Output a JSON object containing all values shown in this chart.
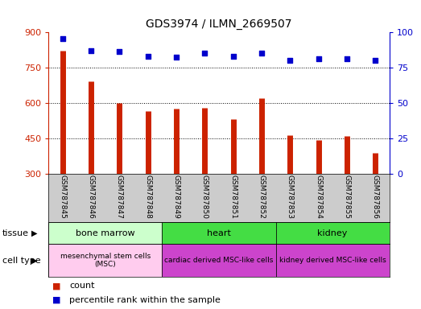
{
  "title": "GDS3974 / ILMN_2669507",
  "samples": [
    "GSM787845",
    "GSM787846",
    "GSM787847",
    "GSM787848",
    "GSM787849",
    "GSM787850",
    "GSM787851",
    "GSM787852",
    "GSM787853",
    "GSM787854",
    "GSM787855",
    "GSM787856"
  ],
  "counts": [
    820,
    690,
    600,
    565,
    575,
    580,
    530,
    620,
    465,
    445,
    460,
    390
  ],
  "percentile_ranks": [
    95,
    87,
    86,
    83,
    82,
    85,
    83,
    85,
    80,
    81,
    81,
    80
  ],
  "ylim_left": [
    300,
    900
  ],
  "ylim_right": [
    0,
    100
  ],
  "yticks_left": [
    300,
    450,
    600,
    750,
    900
  ],
  "yticks_right": [
    0,
    25,
    50,
    75,
    100
  ],
  "bar_color": "#cc2200",
  "dot_color": "#0000cc",
  "grid_color": "#000000",
  "xlabel_bg": "#cccccc",
  "tissue_header": "tissue",
  "cell_type_header": "cell type",
  "legend_count_label": "count",
  "legend_percentile_label": "percentile rank within the sample",
  "tissue_groups": [
    {
      "label": "bone marrow",
      "start": 0,
      "end": 4,
      "color": "#ccffcc"
    },
    {
      "label": "heart",
      "start": 4,
      "end": 8,
      "color": "#44dd44"
    },
    {
      "label": "kidney",
      "start": 8,
      "end": 12,
      "color": "#44dd44"
    }
  ],
  "cell_type_groups": [
    {
      "label": "mesenchymal stem cells\n(MSC)",
      "start": 0,
      "end": 4,
      "color": "#ffccee"
    },
    {
      "label": "cardiac derived MSC-like cells",
      "start": 4,
      "end": 8,
      "color": "#cc44cc"
    },
    {
      "label": "kidney derived MSC-like cells",
      "start": 8,
      "end": 12,
      "color": "#cc44cc"
    }
  ]
}
